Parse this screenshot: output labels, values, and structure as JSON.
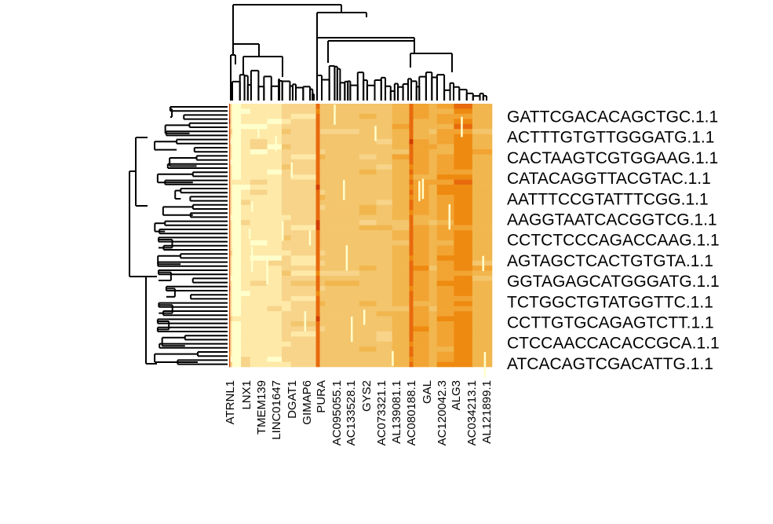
{
  "chart_data": {
    "type": "heatmap",
    "title": "",
    "xlabel": "",
    "ylabel": "",
    "row_labels": [
      "GATTCGACACAGCTGC.1.1",
      "ACTTTGTGTTGGGATG.1.1",
      "CACTAAGTCGTGGAAG.1.1",
      "CATACAGGTTACGTAC.1.1",
      "AATTTCCGTATTTCGG.1.1",
      "AAGGTAATCACGGTCG.1.1",
      "CCTCTCCCAGACCAAG.1.1",
      "AGTAGCTCACTGTGTA.1.1",
      "GGTAGAGCATGGGATG.1.1",
      "TCTGGCTGTATGGTTC.1.1",
      "CCTTGTGCAGAGTCTT.1.1",
      "CTCCAACCACACCGCA.1.1",
      "ATCACAGTCGACATTG.1.1"
    ],
    "col_labels": [
      "ATRNL1",
      "LNX1",
      "TMEM139",
      "LINC01647",
      "DGAT1",
      "GIMAP6",
      "PURA",
      "AC095055.1",
      "AC133528.1",
      "GYS2",
      "AC073321.1",
      "AL139081.1",
      "AC080188.1",
      "GAL",
      "AC120042.3",
      "ALG3",
      "AC034213.1",
      "AL121899.1"
    ],
    "color_scale": [
      "#ffffcc",
      "#fee9a8",
      "#f7d48a",
      "#f3c56c",
      "#f2b64e",
      "#f2a432",
      "#ee8a10",
      "#e86a0c",
      "#d23d00",
      "#b01000"
    ],
    "column_bands": [
      {
        "from": 0.0,
        "to": 0.004,
        "value": 8
      },
      {
        "from": 0.004,
        "to": 0.012,
        "value": 1
      },
      {
        "from": 0.012,
        "to": 0.045,
        "value": 0
      },
      {
        "from": 0.045,
        "to": 0.08,
        "value": 1
      },
      {
        "from": 0.08,
        "to": 0.145,
        "value": 1
      },
      {
        "from": 0.145,
        "to": 0.2,
        "value": 1
      },
      {
        "from": 0.2,
        "to": 0.235,
        "value": 2
      },
      {
        "from": 0.235,
        "to": 0.33,
        "value": 2
      },
      {
        "from": 0.33,
        "to": 0.345,
        "value": 7
      },
      {
        "from": 0.345,
        "to": 0.365,
        "value": 3
      },
      {
        "from": 0.365,
        "to": 0.495,
        "value": 3
      },
      {
        "from": 0.495,
        "to": 0.56,
        "value": 3
      },
      {
        "from": 0.56,
        "to": 0.62,
        "value": 3
      },
      {
        "from": 0.62,
        "to": 0.685,
        "value": 4
      },
      {
        "from": 0.685,
        "to": 0.7,
        "value": 7
      },
      {
        "from": 0.7,
        "to": 0.76,
        "value": 5
      },
      {
        "from": 0.76,
        "to": 0.79,
        "value": 4
      },
      {
        "from": 0.79,
        "to": 0.855,
        "value": 5
      },
      {
        "from": 0.855,
        "to": 0.925,
        "value": 6
      },
      {
        "from": 0.925,
        "to": 1.0,
        "value": 4
      }
    ]
  }
}
